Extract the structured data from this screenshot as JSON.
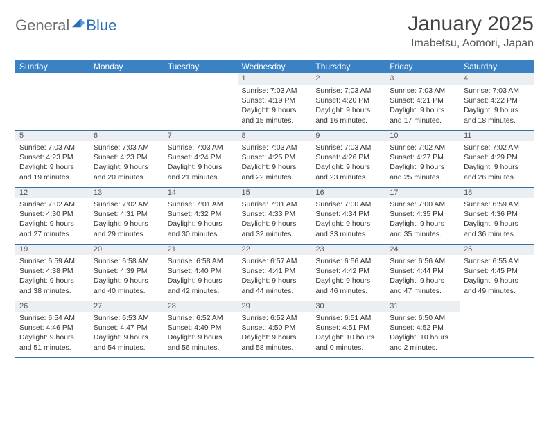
{
  "brand": {
    "part1": "General",
    "part2": "Blue"
  },
  "title": "January 2025",
  "location": "Imabetsu, Aomori, Japan",
  "colors": {
    "header_bg": "#3b82c4",
    "header_text": "#ffffff",
    "daynum_bg": "#eceff1",
    "rule": "#3b6fa0",
    "brand_gray": "#6d6d6d",
    "brand_blue": "#2a6db3"
  },
  "weekdays": [
    "Sunday",
    "Monday",
    "Tuesday",
    "Wednesday",
    "Thursday",
    "Friday",
    "Saturday"
  ],
  "weeks": [
    [
      null,
      null,
      null,
      {
        "n": "1",
        "l1": "Sunrise: 7:03 AM",
        "l2": "Sunset: 4:19 PM",
        "l3": "Daylight: 9 hours",
        "l4": "and 15 minutes."
      },
      {
        "n": "2",
        "l1": "Sunrise: 7:03 AM",
        "l2": "Sunset: 4:20 PM",
        "l3": "Daylight: 9 hours",
        "l4": "and 16 minutes."
      },
      {
        "n": "3",
        "l1": "Sunrise: 7:03 AM",
        "l2": "Sunset: 4:21 PM",
        "l3": "Daylight: 9 hours",
        "l4": "and 17 minutes."
      },
      {
        "n": "4",
        "l1": "Sunrise: 7:03 AM",
        "l2": "Sunset: 4:22 PM",
        "l3": "Daylight: 9 hours",
        "l4": "and 18 minutes."
      }
    ],
    [
      {
        "n": "5",
        "l1": "Sunrise: 7:03 AM",
        "l2": "Sunset: 4:23 PM",
        "l3": "Daylight: 9 hours",
        "l4": "and 19 minutes."
      },
      {
        "n": "6",
        "l1": "Sunrise: 7:03 AM",
        "l2": "Sunset: 4:23 PM",
        "l3": "Daylight: 9 hours",
        "l4": "and 20 minutes."
      },
      {
        "n": "7",
        "l1": "Sunrise: 7:03 AM",
        "l2": "Sunset: 4:24 PM",
        "l3": "Daylight: 9 hours",
        "l4": "and 21 minutes."
      },
      {
        "n": "8",
        "l1": "Sunrise: 7:03 AM",
        "l2": "Sunset: 4:25 PM",
        "l3": "Daylight: 9 hours",
        "l4": "and 22 minutes."
      },
      {
        "n": "9",
        "l1": "Sunrise: 7:03 AM",
        "l2": "Sunset: 4:26 PM",
        "l3": "Daylight: 9 hours",
        "l4": "and 23 minutes."
      },
      {
        "n": "10",
        "l1": "Sunrise: 7:02 AM",
        "l2": "Sunset: 4:27 PM",
        "l3": "Daylight: 9 hours",
        "l4": "and 25 minutes."
      },
      {
        "n": "11",
        "l1": "Sunrise: 7:02 AM",
        "l2": "Sunset: 4:29 PM",
        "l3": "Daylight: 9 hours",
        "l4": "and 26 minutes."
      }
    ],
    [
      {
        "n": "12",
        "l1": "Sunrise: 7:02 AM",
        "l2": "Sunset: 4:30 PM",
        "l3": "Daylight: 9 hours",
        "l4": "and 27 minutes."
      },
      {
        "n": "13",
        "l1": "Sunrise: 7:02 AM",
        "l2": "Sunset: 4:31 PM",
        "l3": "Daylight: 9 hours",
        "l4": "and 29 minutes."
      },
      {
        "n": "14",
        "l1": "Sunrise: 7:01 AM",
        "l2": "Sunset: 4:32 PM",
        "l3": "Daylight: 9 hours",
        "l4": "and 30 minutes."
      },
      {
        "n": "15",
        "l1": "Sunrise: 7:01 AM",
        "l2": "Sunset: 4:33 PM",
        "l3": "Daylight: 9 hours",
        "l4": "and 32 minutes."
      },
      {
        "n": "16",
        "l1": "Sunrise: 7:00 AM",
        "l2": "Sunset: 4:34 PM",
        "l3": "Daylight: 9 hours",
        "l4": "and 33 minutes."
      },
      {
        "n": "17",
        "l1": "Sunrise: 7:00 AM",
        "l2": "Sunset: 4:35 PM",
        "l3": "Daylight: 9 hours",
        "l4": "and 35 minutes."
      },
      {
        "n": "18",
        "l1": "Sunrise: 6:59 AM",
        "l2": "Sunset: 4:36 PM",
        "l3": "Daylight: 9 hours",
        "l4": "and 36 minutes."
      }
    ],
    [
      {
        "n": "19",
        "l1": "Sunrise: 6:59 AM",
        "l2": "Sunset: 4:38 PM",
        "l3": "Daylight: 9 hours",
        "l4": "and 38 minutes."
      },
      {
        "n": "20",
        "l1": "Sunrise: 6:58 AM",
        "l2": "Sunset: 4:39 PM",
        "l3": "Daylight: 9 hours",
        "l4": "and 40 minutes."
      },
      {
        "n": "21",
        "l1": "Sunrise: 6:58 AM",
        "l2": "Sunset: 4:40 PM",
        "l3": "Daylight: 9 hours",
        "l4": "and 42 minutes."
      },
      {
        "n": "22",
        "l1": "Sunrise: 6:57 AM",
        "l2": "Sunset: 4:41 PM",
        "l3": "Daylight: 9 hours",
        "l4": "and 44 minutes."
      },
      {
        "n": "23",
        "l1": "Sunrise: 6:56 AM",
        "l2": "Sunset: 4:42 PM",
        "l3": "Daylight: 9 hours",
        "l4": "and 46 minutes."
      },
      {
        "n": "24",
        "l1": "Sunrise: 6:56 AM",
        "l2": "Sunset: 4:44 PM",
        "l3": "Daylight: 9 hours",
        "l4": "and 47 minutes."
      },
      {
        "n": "25",
        "l1": "Sunrise: 6:55 AM",
        "l2": "Sunset: 4:45 PM",
        "l3": "Daylight: 9 hours",
        "l4": "and 49 minutes."
      }
    ],
    [
      {
        "n": "26",
        "l1": "Sunrise: 6:54 AM",
        "l2": "Sunset: 4:46 PM",
        "l3": "Daylight: 9 hours",
        "l4": "and 51 minutes."
      },
      {
        "n": "27",
        "l1": "Sunrise: 6:53 AM",
        "l2": "Sunset: 4:47 PM",
        "l3": "Daylight: 9 hours",
        "l4": "and 54 minutes."
      },
      {
        "n": "28",
        "l1": "Sunrise: 6:52 AM",
        "l2": "Sunset: 4:49 PM",
        "l3": "Daylight: 9 hours",
        "l4": "and 56 minutes."
      },
      {
        "n": "29",
        "l1": "Sunrise: 6:52 AM",
        "l2": "Sunset: 4:50 PM",
        "l3": "Daylight: 9 hours",
        "l4": "and 58 minutes."
      },
      {
        "n": "30",
        "l1": "Sunrise: 6:51 AM",
        "l2": "Sunset: 4:51 PM",
        "l3": "Daylight: 10 hours",
        "l4": "and 0 minutes."
      },
      {
        "n": "31",
        "l1": "Sunrise: 6:50 AM",
        "l2": "Sunset: 4:52 PM",
        "l3": "Daylight: 10 hours",
        "l4": "and 2 minutes."
      },
      null
    ]
  ]
}
